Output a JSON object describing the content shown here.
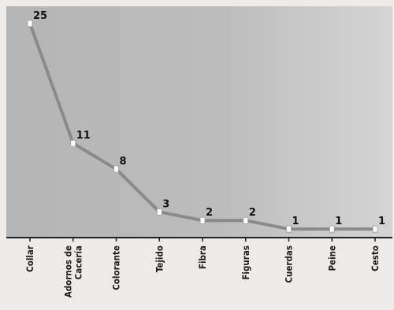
{
  "chart_data": {
    "type": "line",
    "title": "",
    "xlabel": "",
    "ylabel": "",
    "categories": [
      "Collar",
      "Adornos de\nCacería",
      "Colorante",
      "Tejido",
      "Fibra",
      "Figuras",
      "Cuerdas",
      "Peine",
      "Cesto"
    ],
    "series": [
      {
        "values": [
          25,
          11,
          8,
          3,
          2,
          2,
          1,
          1,
          1
        ]
      }
    ],
    "ylim": [
      0,
      27
    ],
    "grid": false,
    "legend": "none",
    "data_labels": true
  },
  "colors": {
    "line": "#8a8a8a",
    "marker": "#ffffff",
    "plot_bg_left": "#b7b7b7",
    "plot_bg_right": "#d2d2d2",
    "axis": "#222222",
    "page_bg": "#ecebea"
  }
}
